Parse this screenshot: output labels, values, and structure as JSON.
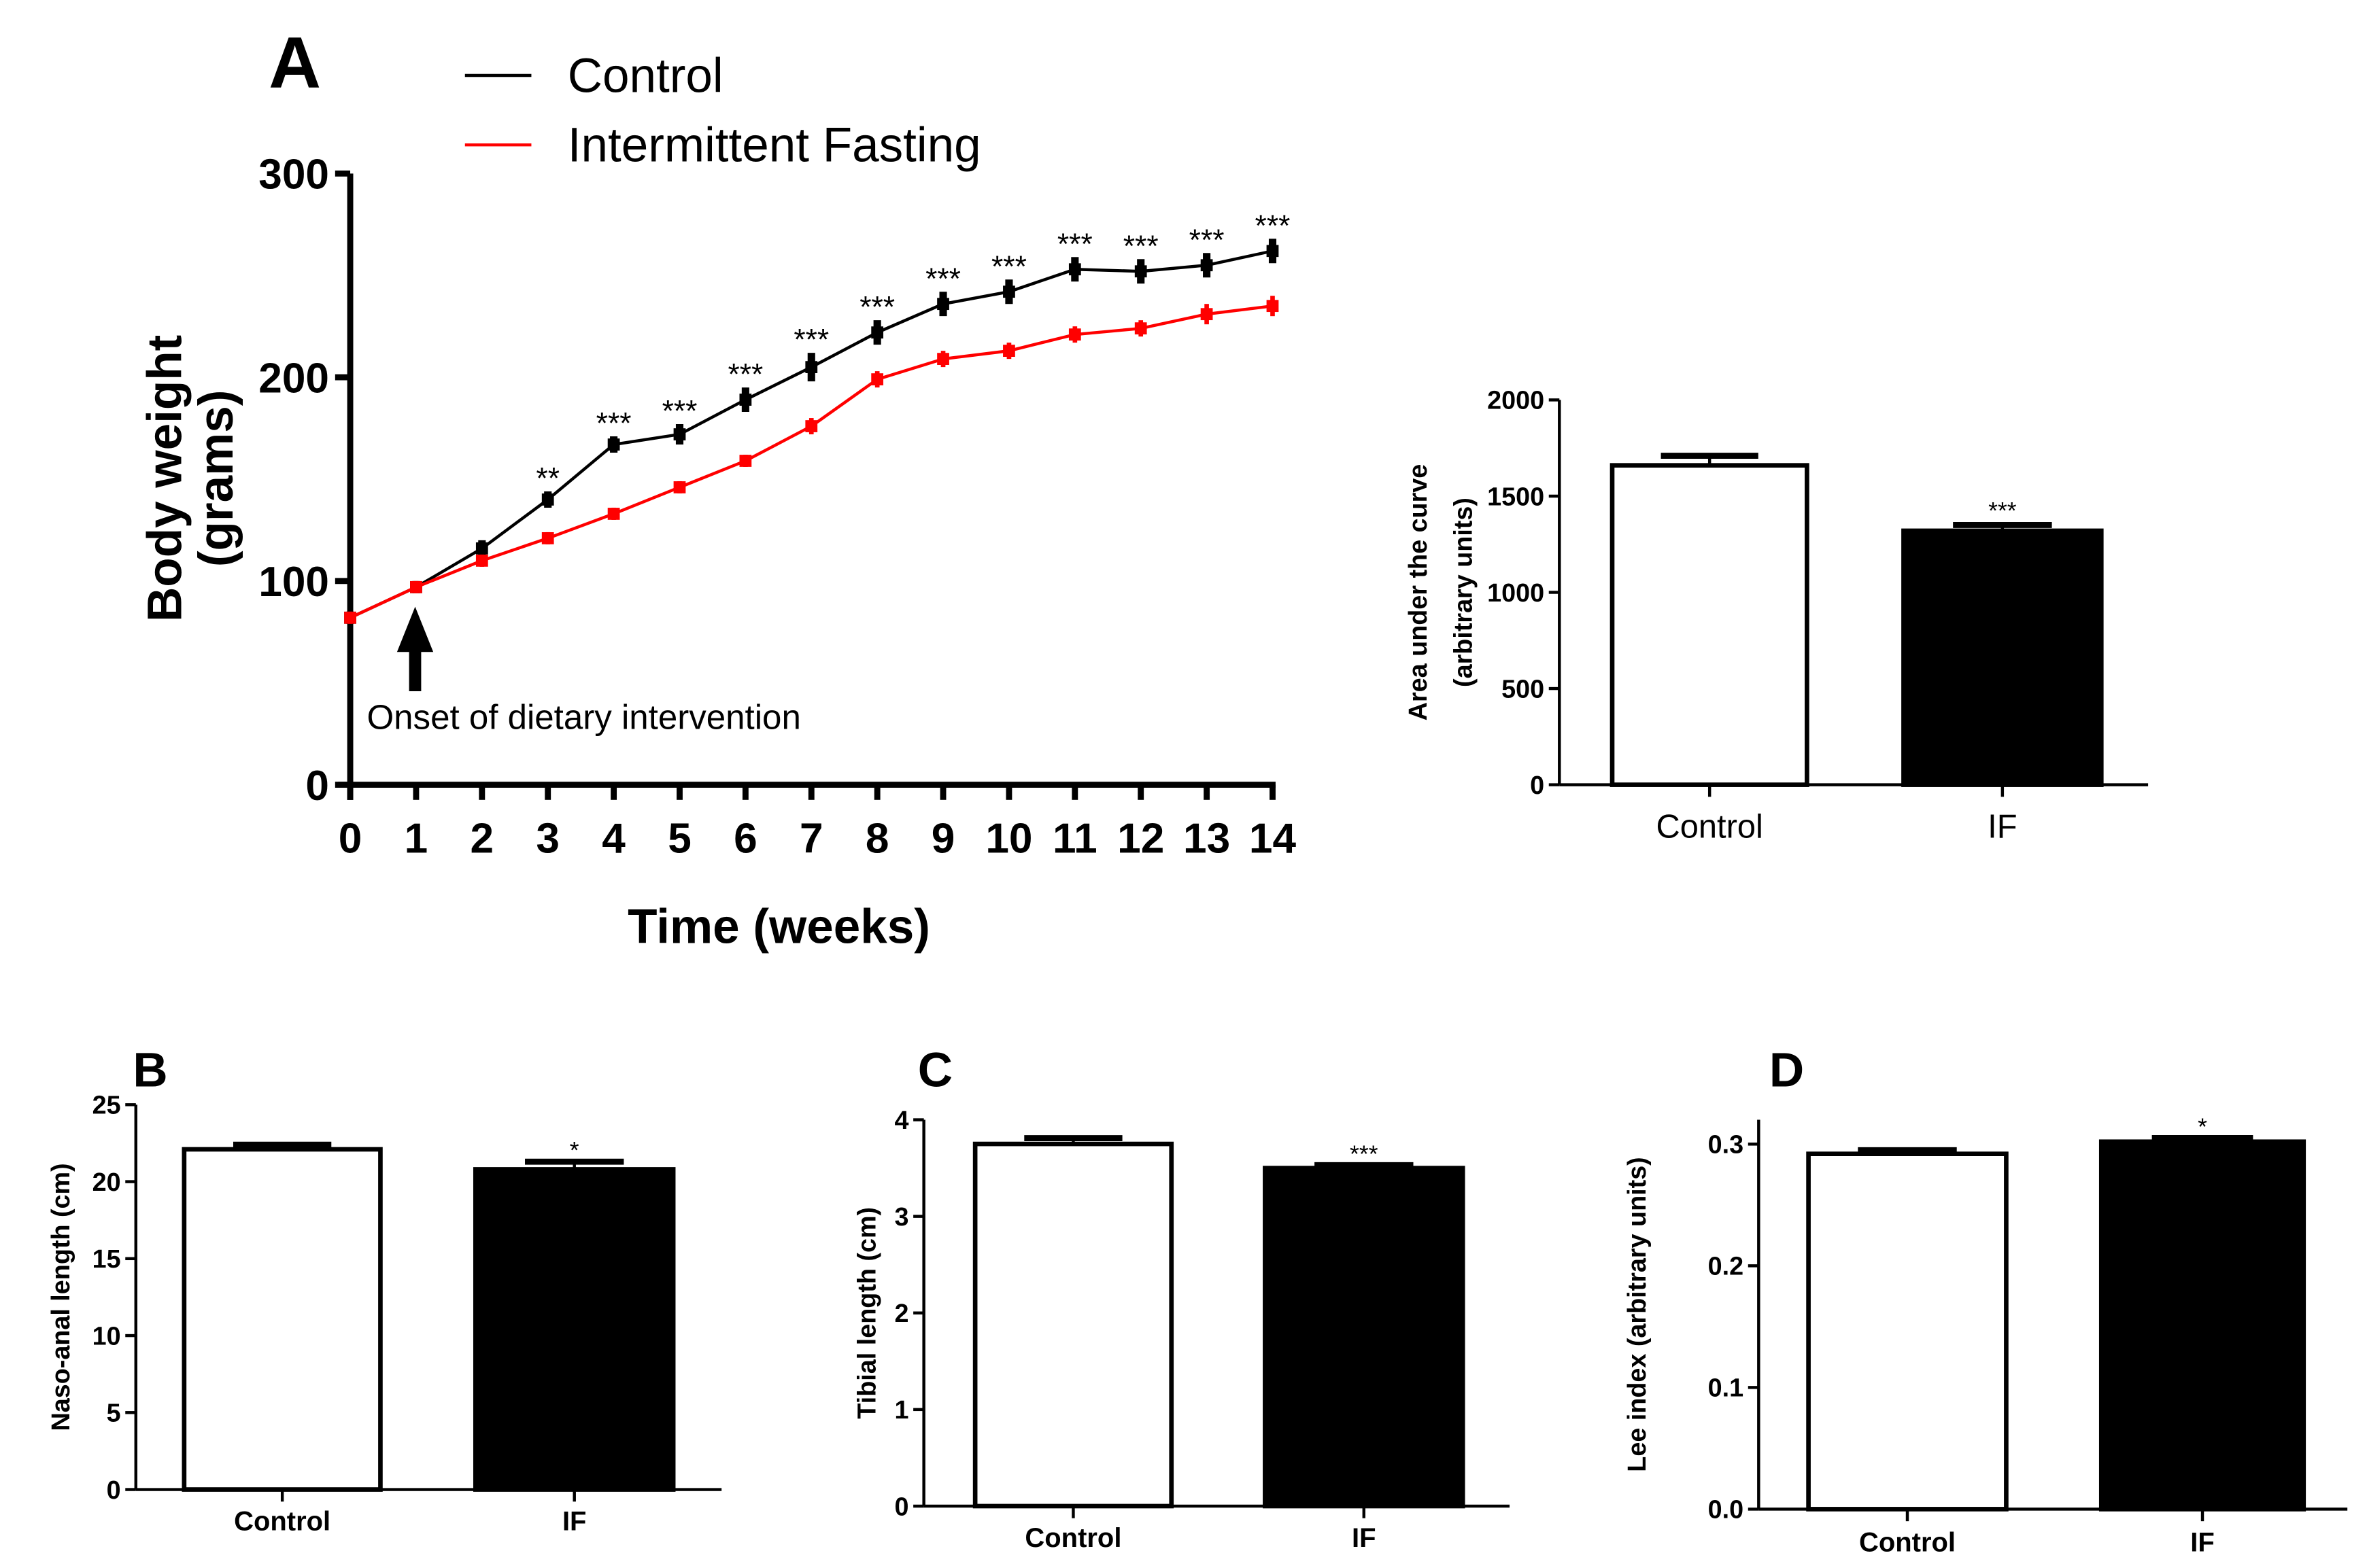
{
  "chart_data": [
    {
      "panel": "A",
      "type": "line",
      "xlabel": "Time (weeks)",
      "ylabel": "Body weight\n(grams)",
      "ylim": [
        0,
        300
      ],
      "yticks": [
        0,
        100,
        200,
        300
      ],
      "x": [
        0,
        1,
        2,
        3,
        4,
        5,
        6,
        7,
        8,
        9,
        10,
        11,
        12,
        13,
        14
      ],
      "annotation": "Onset of dietary intervention",
      "annotation_x": 1,
      "series": [
        {
          "name": "Control",
          "color": "#000000",
          "values": [
            82,
            97,
            116,
            140,
            167,
            172,
            189,
            205,
            222,
            236,
            242,
            253,
            252,
            255,
            262
          ],
          "errors": [
            3,
            3,
            4,
            4,
            4,
            5,
            6,
            7,
            6,
            6,
            6,
            6,
            6,
            6,
            6
          ]
        },
        {
          "name": "Intermittent Fasting",
          "color": "#ff0000",
          "values": [
            82,
            97,
            110,
            121,
            133,
            146,
            159,
            176,
            199,
            209,
            213,
            221,
            224,
            231,
            235
          ],
          "errors": [
            3,
            3,
            3,
            3,
            3,
            3,
            3,
            4,
            4,
            4,
            4,
            4,
            4,
            5,
            5
          ]
        }
      ],
      "significance": [
        "",
        "",
        "",
        "**",
        "***",
        "***",
        "***",
        "***",
        "***",
        "***",
        "***",
        "***",
        "***",
        "***",
        "***"
      ]
    },
    {
      "panel": "",
      "type": "bar",
      "categories": [
        "Control",
        "IF"
      ],
      "values": [
        1660,
        1320
      ],
      "errors": [
        50,
        30
      ],
      "fills": [
        "#ffffff",
        "#000000"
      ],
      "significance": [
        "",
        "***"
      ],
      "ylabel": "Area under the curve\n(arbitrary units)",
      "ylim": [
        0,
        2000
      ],
      "yticks": [
        "0",
        "500",
        "1000",
        "1500",
        "2000"
      ]
    },
    {
      "panel": "B",
      "type": "bar",
      "categories": [
        "Control",
        "IF"
      ],
      "values": [
        22.1,
        20.8
      ],
      "errors": [
        0.3,
        0.5
      ],
      "fills": [
        "#ffffff",
        "#000000"
      ],
      "significance": [
        "",
        "*"
      ],
      "ylabel": "Naso-anal length (cm)",
      "ylim": [
        0,
        25
      ],
      "yticks": [
        "0",
        "5",
        "10",
        "15",
        "20",
        "25"
      ]
    },
    {
      "panel": "C",
      "type": "bar",
      "categories": [
        "Control",
        "IF"
      ],
      "values": [
        3.75,
        3.5
      ],
      "errors": [
        0.06,
        0.03
      ],
      "fills": [
        "#ffffff",
        "#000000"
      ],
      "significance": [
        "",
        "***"
      ],
      "ylabel": "Tibial length (cm)",
      "ylim": [
        0,
        4
      ],
      "yticks": [
        "0",
        "1",
        "2",
        "3",
        "4"
      ]
    },
    {
      "panel": "D",
      "type": "bar",
      "categories": [
        "Control",
        "IF"
      ],
      "values": [
        0.292,
        0.302
      ],
      "errors": [
        0.003,
        0.003
      ],
      "fills": [
        "#ffffff",
        "#000000"
      ],
      "significance": [
        "",
        "*"
      ],
      "ylabel": "Lee index (arbitrary units)",
      "ylim": [
        0,
        0.3
      ],
      "ytop": 0.32,
      "yticks": [
        "0.0",
        "0.1",
        "0.2",
        "0.3"
      ]
    }
  ]
}
